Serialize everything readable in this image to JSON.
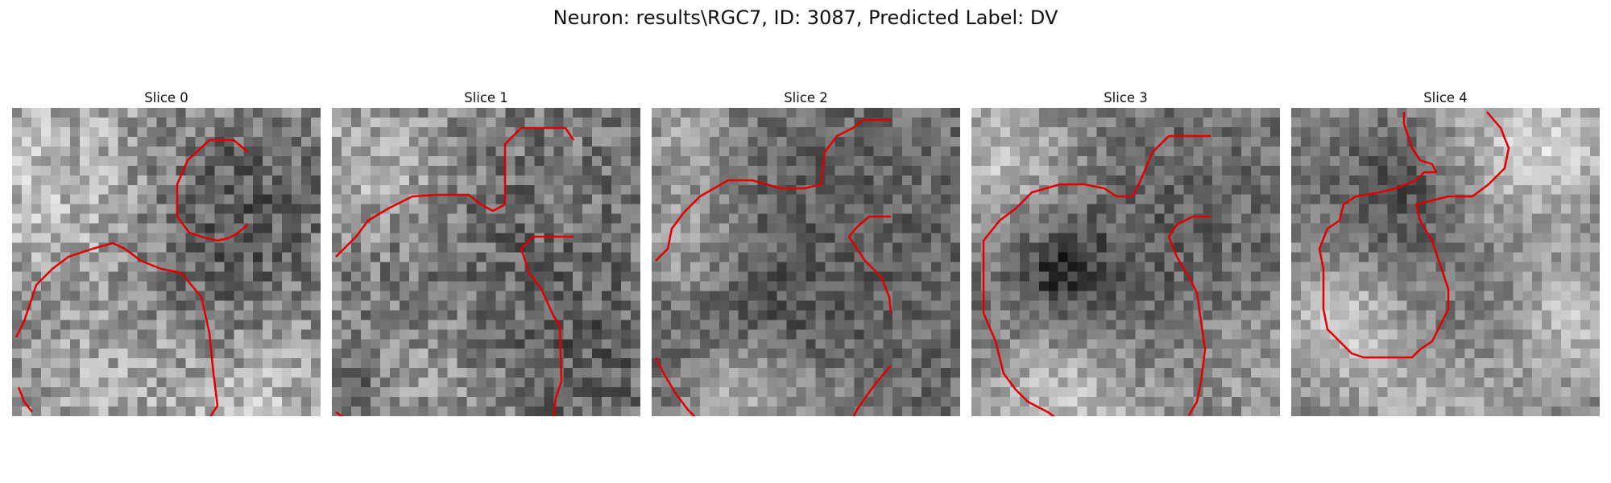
{
  "figure": {
    "title": "Neuron: results\\RGC7, ID: 3087, Predicted Label: DV",
    "contour_color": "#e00000",
    "colormap": "grayscale"
  },
  "panels": [
    {
      "title": "Slice 0"
    },
    {
      "title": "Slice 1"
    },
    {
      "title": "Slice 2"
    },
    {
      "title": "Slice 3"
    },
    {
      "title": "Slice 4"
    }
  ]
}
